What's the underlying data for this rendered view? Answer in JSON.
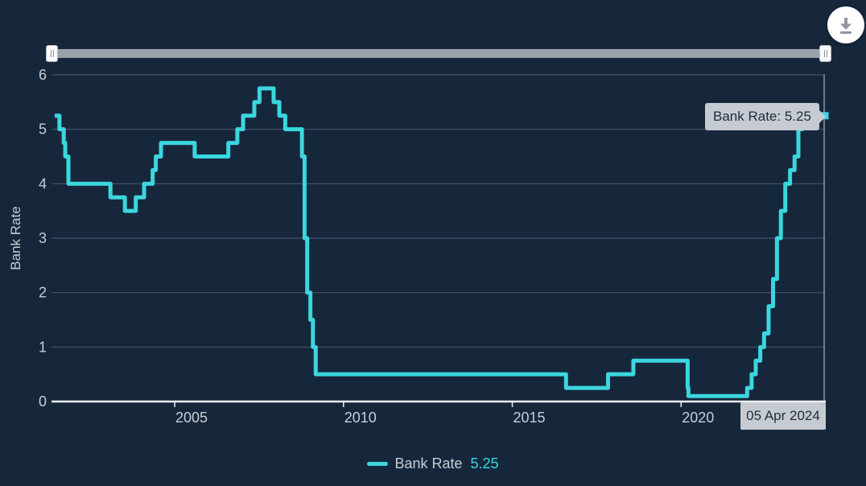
{
  "colors": {
    "background": "#16273C",
    "line": "#3BD6DE",
    "grid": "#42536B",
    "axis_line": "#EFF2F5",
    "tick_text": "#C8CDD3",
    "tooltip_bg": "#C6CBD2",
    "tooltip_text": "#1E2C3D",
    "crosshair": "#8A95A2",
    "slider_track": "#99A1AB",
    "icon": "#8F98A2"
  },
  "toolbar": {
    "download_icon": "download"
  },
  "tooltip": {
    "text": "Bank Rate: 5.25"
  },
  "cursor": {
    "date_label": "05 Apr 2024"
  },
  "legend": {
    "series_label": "Bank Rate",
    "value": "5.25"
  },
  "chart_data": {
    "type": "line",
    "step": "after",
    "title": "",
    "xlabel": "",
    "ylabel": "Bank Rate",
    "ylim": [
      0,
      6
    ],
    "yticks": [
      0,
      1,
      2,
      3,
      4,
      5,
      6
    ],
    "x_range": [
      "2001-06-12",
      "2024-04-05"
    ],
    "xticks": [
      {
        "date": "2005-01-01",
        "label": "2005"
      },
      {
        "date": "2010-01-01",
        "label": "2010"
      },
      {
        "date": "2015-01-01",
        "label": "2015"
      },
      {
        "date": "2020-01-01",
        "label": "2020"
      }
    ],
    "grid": true,
    "legend_position": "bottom",
    "series": [
      {
        "name": "Bank Rate",
        "color": "#3BD6DE",
        "last_value": 5.25,
        "points": [
          [
            "2001-05-10",
            5.25
          ],
          [
            "2001-08-02",
            5.0
          ],
          [
            "2001-09-18",
            4.75
          ],
          [
            "2001-10-04",
            4.5
          ],
          [
            "2001-11-08",
            4.0
          ],
          [
            "2003-02-06",
            3.75
          ],
          [
            "2003-07-10",
            3.5
          ],
          [
            "2003-11-06",
            3.75
          ],
          [
            "2004-02-05",
            4.0
          ],
          [
            "2004-05-06",
            4.25
          ],
          [
            "2004-06-10",
            4.5
          ],
          [
            "2004-08-05",
            4.75
          ],
          [
            "2005-08-04",
            4.5
          ],
          [
            "2006-08-03",
            4.75
          ],
          [
            "2006-11-09",
            5.0
          ],
          [
            "2007-01-11",
            5.25
          ],
          [
            "2007-05-10",
            5.5
          ],
          [
            "2007-07-05",
            5.75
          ],
          [
            "2007-12-06",
            5.5
          ],
          [
            "2008-02-07",
            5.25
          ],
          [
            "2008-04-10",
            5.0
          ],
          [
            "2008-10-08",
            4.5
          ],
          [
            "2008-11-06",
            3.0
          ],
          [
            "2008-12-04",
            2.0
          ],
          [
            "2009-01-08",
            1.5
          ],
          [
            "2009-02-05",
            1.0
          ],
          [
            "2009-03-05",
            0.5
          ],
          [
            "2016-08-04",
            0.25
          ],
          [
            "2017-11-02",
            0.5
          ],
          [
            "2018-08-02",
            0.75
          ],
          [
            "2020-03-11",
            0.25
          ],
          [
            "2020-03-19",
            0.1
          ],
          [
            "2021-12-16",
            0.25
          ],
          [
            "2022-02-03",
            0.5
          ],
          [
            "2022-03-17",
            0.75
          ],
          [
            "2022-05-05",
            1.0
          ],
          [
            "2022-06-16",
            1.25
          ],
          [
            "2022-08-04",
            1.75
          ],
          [
            "2022-09-22",
            2.25
          ],
          [
            "2022-11-03",
            3.0
          ],
          [
            "2022-12-15",
            3.5
          ],
          [
            "2023-02-02",
            4.0
          ],
          [
            "2023-03-23",
            4.25
          ],
          [
            "2023-05-11",
            4.5
          ],
          [
            "2023-06-22",
            5.0
          ],
          [
            "2023-08-03",
            5.25
          ],
          [
            "2024-04-05",
            5.25
          ]
        ]
      }
    ]
  }
}
